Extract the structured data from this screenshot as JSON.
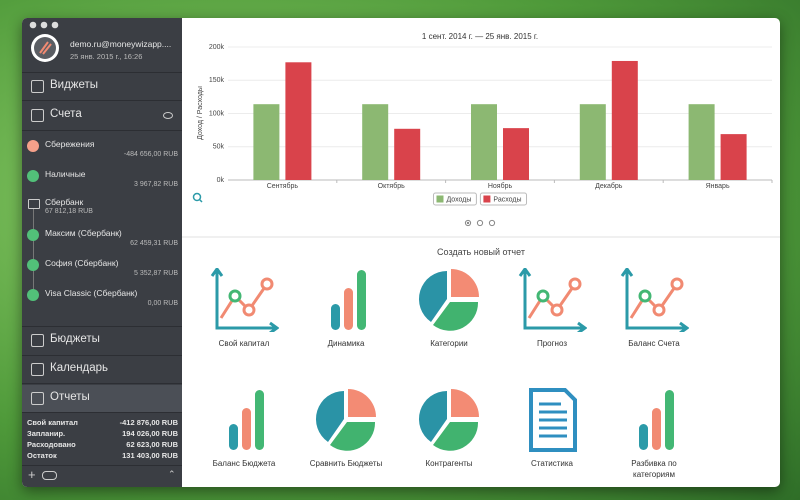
{
  "sidebar": {
    "user": {
      "email": "demo.ru@moneywizapp....",
      "timestamp": "25 янв. 2015 г., 16:26"
    },
    "nav_top": [
      "Виджеты",
      "Счета"
    ],
    "accounts": [
      {
        "name": "Сбережения",
        "balance": "-484 656,00 RUB"
      },
      {
        "name": "Наличные",
        "balance": "3 967,82 RUB"
      },
      {
        "name": "Сбербанк",
        "balance": "67 812,18 RUB"
      },
      {
        "name": "Максим (Сбербанк)",
        "balance": "62 459,31 RUB"
      },
      {
        "name": "София (Сбербанк)",
        "balance": "5 352,87 RUB"
      },
      {
        "name": "Visa Classic (Сбербанк)",
        "balance": "0,00 RUB"
      }
    ],
    "nav_bottom": [
      "Бюджеты",
      "Календарь",
      "Отчеты"
    ],
    "summary": [
      {
        "label": "Свой капитал",
        "value": "-412 876,00 RUB"
      },
      {
        "label": "Запланир.",
        "value": "194 026,00 RUB"
      },
      {
        "label": "Расходовано",
        "value": "62 623,00 RUB"
      },
      {
        "label": "Остаток",
        "value": "131 403,00 RUB"
      }
    ]
  },
  "chart_data": {
    "type": "bar",
    "title": "1 сент. 2014 г. — 25 янв. 2015 г.",
    "y_label": "Доход / Расходы",
    "categories": [
      "Сентябрь",
      "Октябрь",
      "Ноябрь",
      "Декабрь",
      "Январь"
    ],
    "series": [
      {
        "name": "Доходы",
        "color": "#8cb872",
        "values": [
          114000,
          114000,
          114000,
          114000,
          114000
        ]
      },
      {
        "name": "Расходы",
        "color": "#d9434b",
        "values": [
          177000,
          77000,
          78000,
          179000,
          69000
        ]
      }
    ],
    "ylim": [
      0,
      200000
    ],
    "yticks": [
      {
        "value": 0,
        "label": "0k"
      },
      {
        "value": 50000,
        "label": "50k"
      },
      {
        "value": 100000,
        "label": "100k"
      },
      {
        "value": 150000,
        "label": "150k"
      },
      {
        "value": 200000,
        "label": "200k"
      }
    ],
    "grid": true,
    "legend": "bottom"
  },
  "reports": {
    "title": "Создать новый отчет",
    "items": [
      "Свой капитал",
      "Динамика",
      "Категории",
      "Прогноз",
      "Баланс Счета",
      "Баланс Бюджета",
      "Сравнить Бюджеты",
      "Контрагенты",
      "Статистика",
      "Разбивка по категориям"
    ]
  }
}
